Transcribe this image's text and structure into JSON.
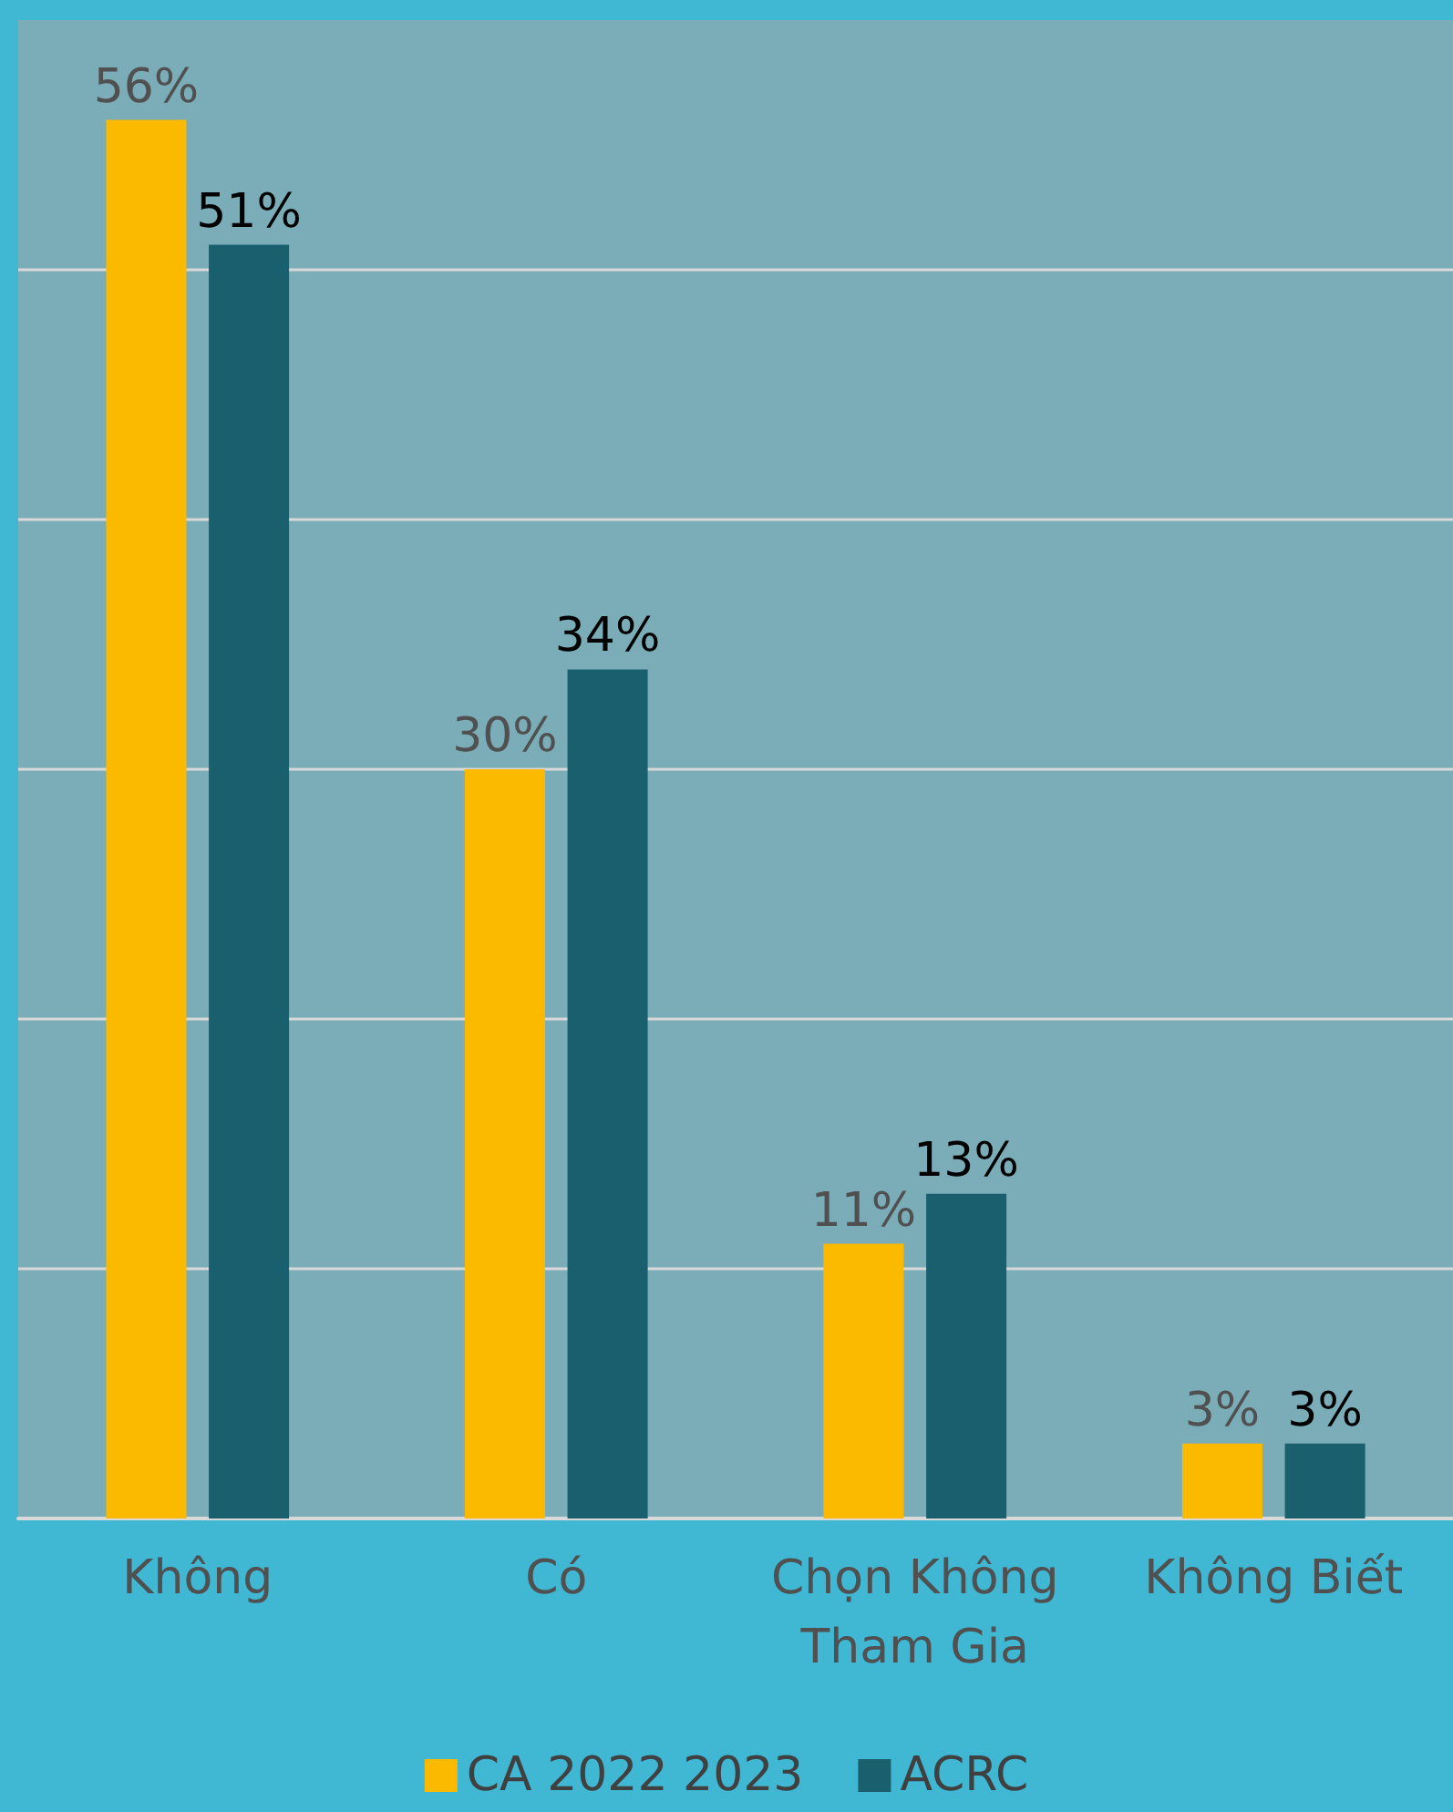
{
  "chart_data": {
    "type": "bar",
    "categories": [
      "Không",
      "Có",
      "Chọn Không\nTham Gia",
      "Không Biết"
    ],
    "series": [
      {
        "name": "CA 2022 2023",
        "color": "#fbb900",
        "values": [
          56,
          30,
          11,
          3
        ],
        "value_labels": [
          "56%",
          "30%",
          "11%",
          "3%"
        ]
      },
      {
        "name": "ACRC",
        "color": "#1a5f6e",
        "values": [
          51,
          34,
          13,
          3
        ],
        "value_labels": [
          "51%",
          "34%",
          "13%",
          "3%"
        ]
      }
    ],
    "tick_labels": "x",
    "grid": "y",
    "legend": "bottom"
  }
}
